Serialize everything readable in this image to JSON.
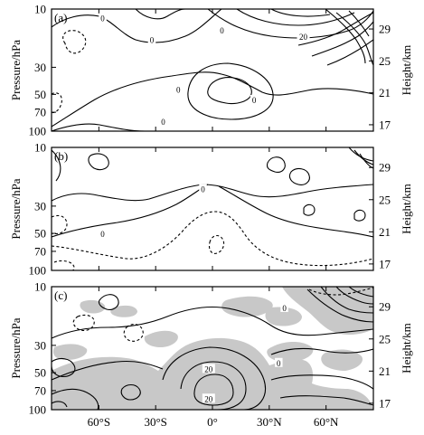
{
  "chart_data": {
    "type": "contour",
    "x_ticks": [
      "60°S",
      "30°S",
      "0°",
      "30°N",
      "60°N"
    ],
    "x_tick_values": [
      -60,
      -30,
      0,
      30,
      60
    ],
    "xlim": [
      -85,
      85
    ],
    "left_axis": {
      "label": "Pressure/hPa",
      "ticks": [
        "10",
        "30",
        "50",
        "70",
        "100"
      ],
      "tick_values": [
        10,
        30,
        50,
        70,
        100
      ],
      "scale": "log",
      "lim": [
        100,
        10
      ]
    },
    "right_axis": {
      "label": "Height/km",
      "ticks": [
        "29",
        "25",
        "21",
        "17"
      ],
      "tick_values": [
        29,
        25,
        21,
        17
      ],
      "lim": [
        16.2,
        31.5
      ]
    },
    "panels": [
      {
        "label": "(a)",
        "contour_labels": [
          {
            "text": "0",
            "lat": -58,
            "p": 12
          },
          {
            "text": "0",
            "lat": -32,
            "p": 18
          },
          {
            "text": "0",
            "lat": 5,
            "p": 15
          },
          {
            "text": "20",
            "lat": 48,
            "p": 17
          },
          {
            "text": "0",
            "lat": -18,
            "p": 46
          },
          {
            "text": "0",
            "lat": -26,
            "p": 84
          },
          {
            "text": "0",
            "lat": 22,
            "p": 56
          }
        ]
      },
      {
        "label": "(b)",
        "contour_labels": [
          {
            "text": "0",
            "lat": -5,
            "p": 22
          },
          {
            "text": "0",
            "lat": -58,
            "p": 51
          }
        ]
      },
      {
        "label": "(c)",
        "contour_labels": [
          {
            "text": "0",
            "lat": 38,
            "p": 15
          },
          {
            "text": "0",
            "lat": 35,
            "p": 42
          },
          {
            "text": "20",
            "lat": -2,
            "p": 47
          },
          {
            "text": "20",
            "lat": -2,
            "p": 82
          }
        ]
      }
    ]
  }
}
